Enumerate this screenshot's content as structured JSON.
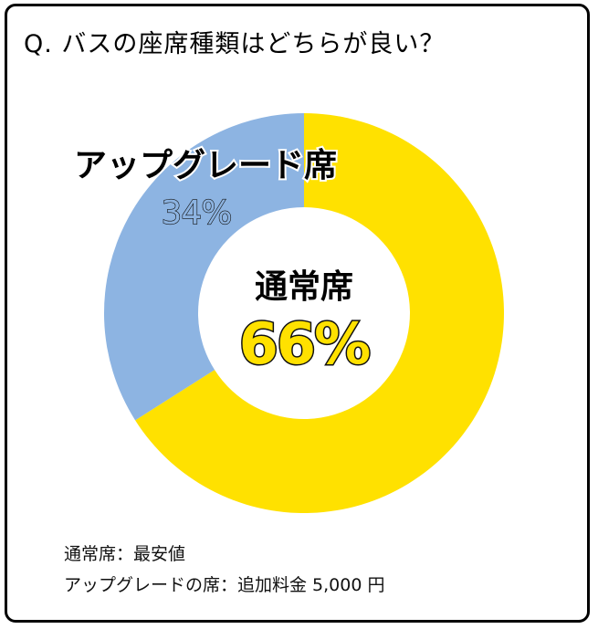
{
  "question": "Q. バスの座席種類はどちらが良い？",
  "chart_data": {
    "type": "pie",
    "categories": [
      "通常席",
      "アップグレード席"
    ],
    "values": [
      66,
      34
    ],
    "value_labels": [
      "66%",
      "34%"
    ],
    "colors": [
      "#FFE100",
      "#8DB4E2"
    ]
  },
  "notes": [
    "通常席：最安値",
    "アップグレードの席：追加料金 5,000 円"
  ]
}
